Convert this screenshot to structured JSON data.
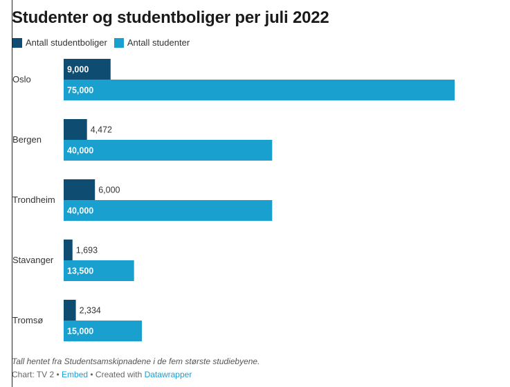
{
  "header": {
    "title": "Studenter og studentboliger per juli 2022"
  },
  "legend": [
    {
      "label": "Antall studentboliger",
      "color": "#0f4c72"
    },
    {
      "label": "Antall studenter",
      "color": "#1aa0cf"
    }
  ],
  "chart_data": {
    "type": "bar",
    "orientation": "horizontal",
    "title": "Studenter og studentboliger per juli 2022",
    "categories": [
      "Oslo",
      "Bergen",
      "Trondheim",
      "Stavanger",
      "Tromsø"
    ],
    "series": [
      {
        "name": "Antall studentboliger",
        "values": [
          9000,
          4472,
          6000,
          1693,
          2334
        ],
        "color": "#0f4c72",
        "labels": [
          "9,000",
          "4,472",
          "6,000",
          "1,693",
          "2,334"
        ]
      },
      {
        "name": "Antall studenter",
        "values": [
          75000,
          40000,
          40000,
          13500,
          15000
        ],
        "color": "#1aa0cf",
        "labels": [
          "75,000",
          "40,000",
          "40,000",
          "13,500",
          "15,000"
        ]
      }
    ],
    "xlim": [
      0,
      75000
    ],
    "grid": false,
    "legend_position": "top-left"
  },
  "footer": {
    "notes": "Tall hentet fra Studentsamskipnadene i de fem største studiebyene.",
    "source_prefix": "Chart: TV 2 • ",
    "embed_label": "Embed",
    "created_with": " • Created with ",
    "tool_label": "Datawrapper"
  }
}
